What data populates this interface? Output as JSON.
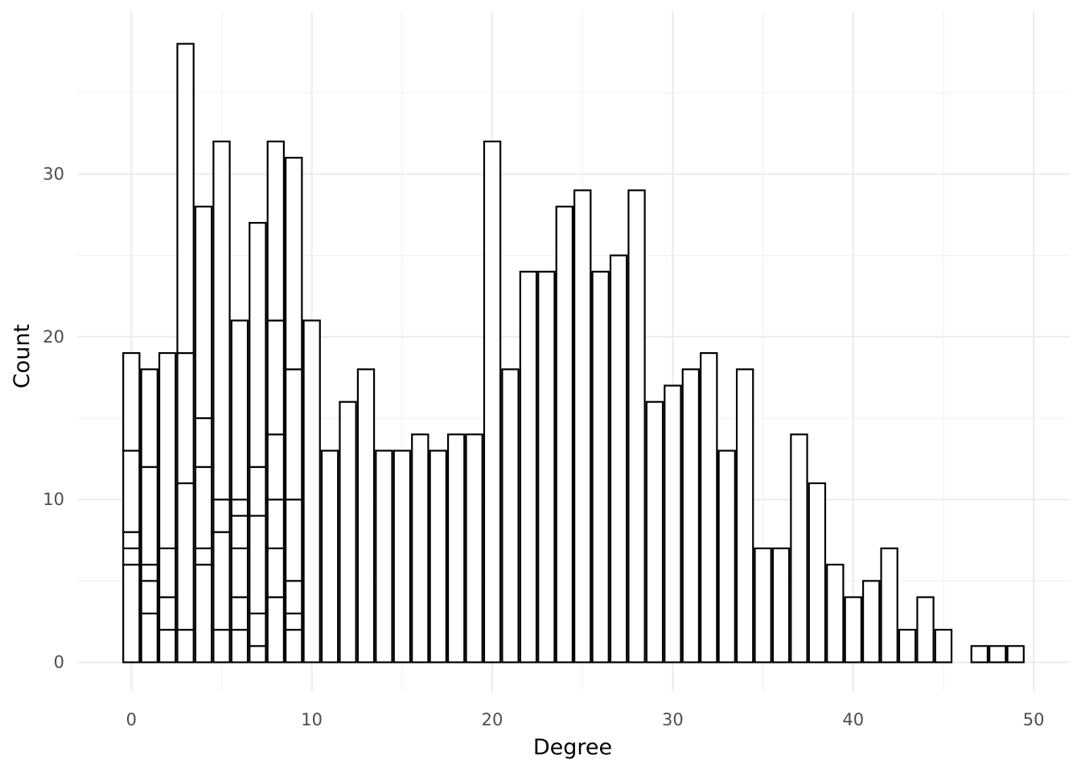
{
  "chart_data": {
    "type": "bar",
    "stacked": true,
    "xlabel": "Degree",
    "ylabel": "Count",
    "xlim": [
      -3,
      52
    ],
    "ylim": [
      -1.8,
      40
    ],
    "xticks": [
      0,
      10,
      20,
      30,
      40,
      50
    ],
    "yticks": [
      0,
      10,
      20,
      30
    ],
    "grid": true,
    "legend": "none",
    "colors": {
      "bar_fill": "#ffffff",
      "bar_stroke": "#000000",
      "grid": "#ebebeb",
      "tick_text": "#4d4d4d"
    },
    "bars": [
      {
        "x": 0,
        "stack": [
          6,
          1,
          1,
          5,
          6
        ]
      },
      {
        "x": 1,
        "stack": [
          3,
          2,
          1,
          6,
          6
        ]
      },
      {
        "x": 2,
        "stack": [
          2,
          2,
          3,
          12
        ]
      },
      {
        "x": 3,
        "stack": [
          2,
          9,
          8,
          19
        ]
      },
      {
        "x": 4,
        "stack": [
          6,
          1,
          5,
          3,
          13
        ]
      },
      {
        "x": 5,
        "stack": [
          2,
          6,
          2,
          22
        ]
      },
      {
        "x": 6,
        "stack": [
          2,
          2,
          3,
          2,
          1,
          11
        ]
      },
      {
        "x": 7,
        "stack": [
          1,
          2,
          6,
          3,
          15
        ]
      },
      {
        "x": 8,
        "stack": [
          4,
          3,
          3,
          4,
          7,
          11
        ]
      },
      {
        "x": 9,
        "stack": [
          2,
          1,
          2,
          5,
          8,
          13
        ]
      },
      {
        "x": 10,
        "stack": [
          21
        ]
      },
      {
        "x": 11,
        "stack": [
          13
        ]
      },
      {
        "x": 12,
        "stack": [
          16
        ]
      },
      {
        "x": 13,
        "stack": [
          18
        ]
      },
      {
        "x": 14,
        "stack": [
          13
        ]
      },
      {
        "x": 15,
        "stack": [
          13
        ]
      },
      {
        "x": 16,
        "stack": [
          14
        ]
      },
      {
        "x": 17,
        "stack": [
          13
        ]
      },
      {
        "x": 18,
        "stack": [
          14
        ]
      },
      {
        "x": 19,
        "stack": [
          14
        ]
      },
      {
        "x": 20,
        "stack": [
          32
        ]
      },
      {
        "x": 21,
        "stack": [
          18
        ]
      },
      {
        "x": 22,
        "stack": [
          24
        ]
      },
      {
        "x": 23,
        "stack": [
          24
        ]
      },
      {
        "x": 24,
        "stack": [
          28
        ]
      },
      {
        "x": 25,
        "stack": [
          29
        ]
      },
      {
        "x": 26,
        "stack": [
          24
        ]
      },
      {
        "x": 27,
        "stack": [
          25
        ]
      },
      {
        "x": 28,
        "stack": [
          29
        ]
      },
      {
        "x": 29,
        "stack": [
          16
        ]
      },
      {
        "x": 30,
        "stack": [
          17
        ]
      },
      {
        "x": 31,
        "stack": [
          18
        ]
      },
      {
        "x": 32,
        "stack": [
          19
        ]
      },
      {
        "x": 33,
        "stack": [
          13
        ]
      },
      {
        "x": 34,
        "stack": [
          18
        ]
      },
      {
        "x": 35,
        "stack": [
          7
        ]
      },
      {
        "x": 36,
        "stack": [
          7
        ]
      },
      {
        "x": 37,
        "stack": [
          14
        ]
      },
      {
        "x": 38,
        "stack": [
          11
        ]
      },
      {
        "x": 39,
        "stack": [
          6
        ]
      },
      {
        "x": 40,
        "stack": [
          4
        ]
      },
      {
        "x": 41,
        "stack": [
          5
        ]
      },
      {
        "x": 42,
        "stack": [
          7
        ]
      },
      {
        "x": 43,
        "stack": [
          2
        ]
      },
      {
        "x": 44,
        "stack": [
          4
        ]
      },
      {
        "x": 45,
        "stack": [
          2
        ]
      },
      {
        "x": 47,
        "stack": [
          1
        ]
      },
      {
        "x": 48,
        "stack": [
          1
        ]
      },
      {
        "x": 49,
        "stack": [
          1
        ]
      }
    ]
  }
}
